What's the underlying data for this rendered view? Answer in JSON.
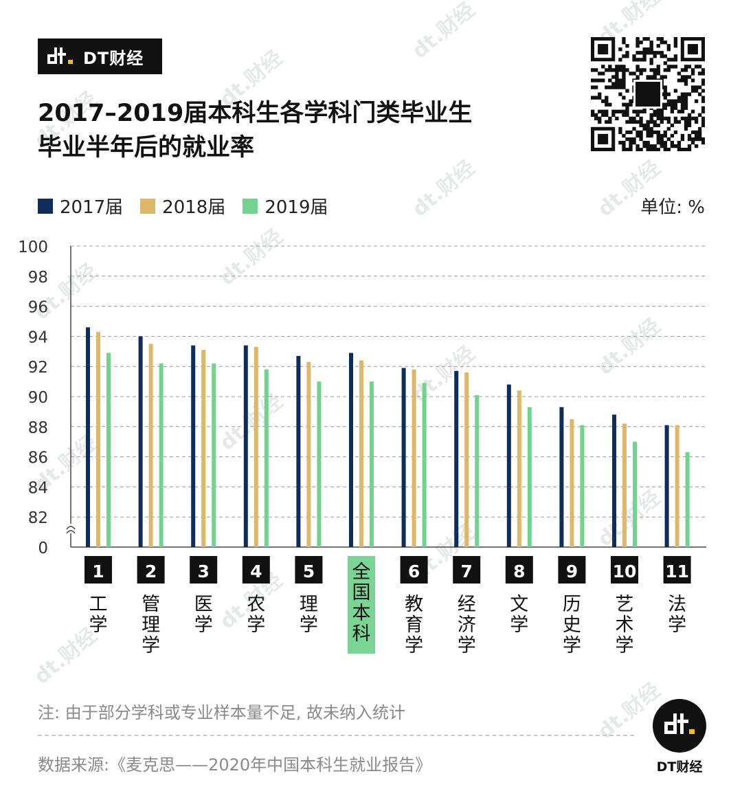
{
  "brand": {
    "name": "DT财经",
    "footer_name": "DT财经",
    "watermark_text": "dt.财经"
  },
  "title": {
    "line1": "2017–2019届本科生各学科门类毕业生",
    "line2": "毕业半年后的就业率"
  },
  "unit": "单位: %",
  "colors": {
    "2017": "#0f2d5a",
    "2018": "#ddb76a",
    "2019": "#72d38e",
    "highlight_box": "#7ad493",
    "number_box": "#111111"
  },
  "chart_data": {
    "type": "bar",
    "ylim": [
      80,
      100
    ],
    "y_axis_break": true,
    "y_ticks": [
      "100",
      "98",
      "96",
      "94",
      "92",
      "90",
      "88",
      "86",
      "84",
      "82",
      "0"
    ],
    "y_tick_values": [
      100,
      98,
      96,
      94,
      92,
      90,
      88,
      86,
      84,
      82,
      80
    ],
    "grid": "dashed horizontal",
    "legend_position": "top-left",
    "categories": [
      {
        "num": "1",
        "label": "工学",
        "highlight": false
      },
      {
        "num": "2",
        "label": "管理学",
        "highlight": false
      },
      {
        "num": "3",
        "label": "医学",
        "highlight": false
      },
      {
        "num": "4",
        "label": "农学",
        "highlight": false
      },
      {
        "num": "5",
        "label": "理学",
        "highlight": false
      },
      {
        "num": "",
        "label": "全国本科",
        "highlight": true
      },
      {
        "num": "6",
        "label": "教育学",
        "highlight": false
      },
      {
        "num": "7",
        "label": "经济学",
        "highlight": false
      },
      {
        "num": "8",
        "label": "文学",
        "highlight": false
      },
      {
        "num": "9",
        "label": "历史学",
        "highlight": false
      },
      {
        "num": "10",
        "label": "艺术学",
        "highlight": false
      },
      {
        "num": "11",
        "label": "法学",
        "highlight": false
      }
    ],
    "series": [
      {
        "name": "2017届",
        "color_key": "2017",
        "values": [
          94.6,
          94.0,
          93.4,
          93.4,
          92.7,
          92.9,
          91.9,
          91.7,
          90.8,
          89.3,
          88.8,
          88.1
        ]
      },
      {
        "name": "2018届",
        "color_key": "2018",
        "values": [
          94.3,
          93.5,
          93.1,
          93.3,
          92.3,
          92.4,
          91.8,
          91.6,
          90.4,
          88.5,
          88.2,
          88.1
        ]
      },
      {
        "name": "2019届",
        "color_key": "2019",
        "values": [
          92.9,
          92.2,
          92.2,
          91.8,
          91.0,
          91.0,
          90.9,
          90.1,
          89.3,
          88.1,
          87.0,
          86.3
        ]
      }
    ]
  },
  "footnote": "注: 由于部分学科或专业样本量不足, 故未纳入统计",
  "source": "数据来源:《麦克思——2020年中国本科生就业报告》"
}
